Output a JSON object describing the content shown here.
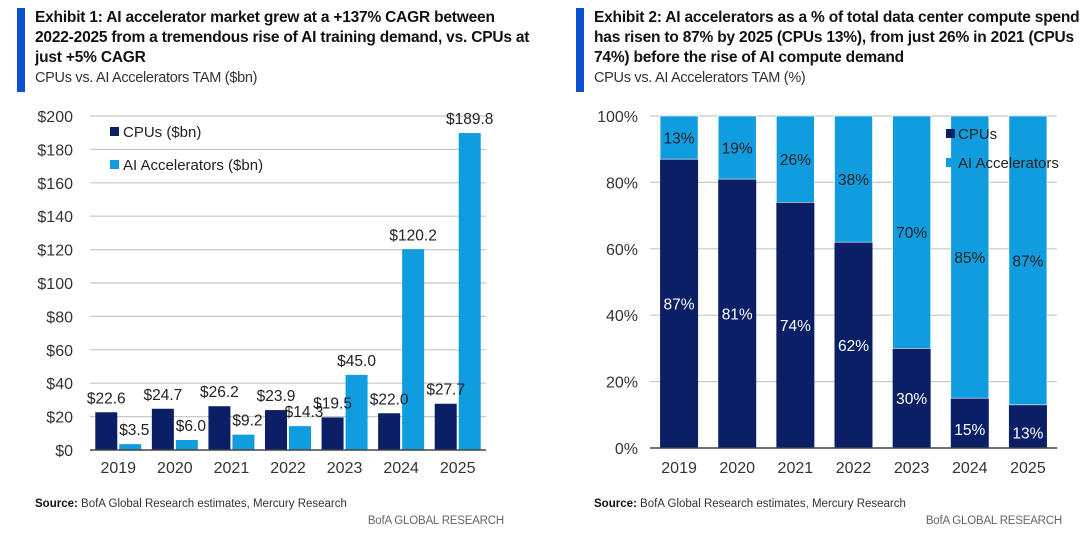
{
  "colors": {
    "cpu": "#0b1f66",
    "accel": "#0f9ddf",
    "grid": "#c8c8c8",
    "axis": "#444444",
    "accent": "#0a4fd0"
  },
  "left": {
    "title": "Exhibit 1: AI accelerator market grew at a +137% CAGR between 2022-2025 from a tremendous rise of AI training demand, vs. CPUs at just +5% CAGR",
    "subtitle": "CPUs vs. AI Accelerators TAM ($bn)",
    "source_label": "Source:",
    "source_text": " BofA Global Research estimates, Mercury Research",
    "brand": "BofA GLOBAL RESEARCH"
  },
  "right": {
    "title": "Exhibit 2: AI accelerators as a % of total data center compute spend has risen to 87% by 2025 (CPUs 13%), from just 26% in 2021 (CPUs 74%) before the rise of AI compute demand",
    "subtitle": "CPUs vs. AI Accelerators TAM (%)",
    "source_label": "Source:",
    "source_text": " BofA Global Research estimates, Mercury Research",
    "brand": "BofA GLOBAL RESEARCH"
  },
  "chart_data": [
    {
      "type": "bar",
      "title": "CPUs vs. AI Accelerators TAM ($bn)",
      "categories": [
        "2019",
        "2020",
        "2021",
        "2022",
        "2023",
        "2024",
        "2025"
      ],
      "series": [
        {
          "name": "CPUs ($bn)",
          "values": [
            22.6,
            24.7,
            26.2,
            23.9,
            19.5,
            22.0,
            27.7
          ],
          "labels": [
            "$22.6",
            "$24.7",
            "$26.2",
            "$23.9",
            "$19.5",
            "$22.0",
            "$27.7"
          ]
        },
        {
          "name": "AI Accelerators ($bn)",
          "values": [
            3.5,
            6.0,
            9.2,
            14.3,
            45.0,
            120.2,
            189.8
          ],
          "labels": [
            "$3.5",
            "$6.0",
            "$9.2",
            "$14.3",
            "$45.0",
            "$120.2",
            "$189.8"
          ]
        }
      ],
      "ylim": [
        0,
        200
      ],
      "yticks": [
        0,
        20,
        40,
        60,
        80,
        100,
        120,
        140,
        160,
        180,
        200
      ],
      "ytick_labels": [
        "$0",
        "$20",
        "$40",
        "$60",
        "$80",
        "$100",
        "$120",
        "$140",
        "$160",
        "$180",
        "$200"
      ],
      "xlabel": "",
      "ylabel": "",
      "grid": true,
      "legend": "top-left"
    },
    {
      "type": "bar",
      "stacked": true,
      "title": "CPUs vs. AI Accelerators TAM (%)",
      "categories": [
        "2019",
        "2020",
        "2021",
        "2022",
        "2023",
        "2024",
        "2025"
      ],
      "series": [
        {
          "name": "CPUs",
          "values": [
            87,
            81,
            74,
            62,
            30,
            15,
            13
          ],
          "labels": [
            "87%",
            "81%",
            "74%",
            "62%",
            "30%",
            "15%",
            "13%"
          ]
        },
        {
          "name": "AI Accelerators",
          "values": [
            13,
            19,
            26,
            38,
            70,
            85,
            87
          ],
          "labels": [
            "13%",
            "19%",
            "26%",
            "38%",
            "70%",
            "85%",
            "87%"
          ]
        }
      ],
      "ylim": [
        0,
        100
      ],
      "yticks": [
        0,
        20,
        40,
        60,
        80,
        100
      ],
      "ytick_labels": [
        "0%",
        "20%",
        "40%",
        "60%",
        "80%",
        "100%"
      ],
      "xlabel": "",
      "ylabel": "",
      "grid": true,
      "legend": "top-right"
    }
  ]
}
